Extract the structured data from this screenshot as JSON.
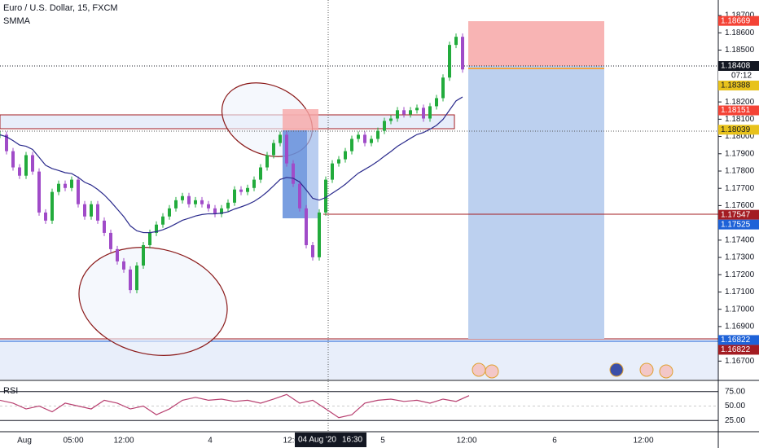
{
  "chart_data": {
    "type": "candlestick",
    "title": "Euro / U.S. Dollar, 15, FXCM",
    "indicator": "SMMA",
    "closes": [
      1.1801,
      1.17915,
      1.17821,
      1.17773,
      1.17892,
      1.17797,
      1.1756,
      1.17513,
      1.17679,
      1.17726,
      1.17702,
      1.1775,
      1.17608,
      1.17537,
      1.17608,
      1.17513,
      1.17442,
      1.17348,
      1.17277,
      1.1723,
      1.17111,
      1.17253,
      1.17371,
      1.17442,
      1.1749,
      1.17537,
      1.17584,
      1.17631,
      1.17655,
      1.17608,
      1.17631,
      1.17608,
      1.17584,
      1.17551,
      1.17584,
      1.17617,
      1.17693,
      1.17679,
      1.17702,
      1.1775,
      1.17821,
      1.17892,
      1.17962,
      1.1801,
      1.17844,
      1.17726,
      1.17584,
      1.17371,
      1.17301,
      1.1756,
      1.1775,
      1.17844,
      1.17868,
      1.17915,
      1.17986,
      1.1801,
      1.17962,
      1.17986,
      1.18033,
      1.1809,
      1.18104,
      1.18152,
      1.18128,
      1.18152,
      1.18166,
      1.18104,
      1.18175,
      1.18222,
      1.18341,
      1.1853,
      1.18577,
      1.18388
    ],
    "up_color": "#22ab3c",
    "down_color": "#a04bc8",
    "smma_color": "#2a2a8c",
    "ylim": [
      1.16593,
      1.1879
    ],
    "yticks": [
      {
        "value": 1.187,
        "label": "1.18700"
      },
      {
        "value": 1.186,
        "label": "1.18600"
      },
      {
        "value": 1.185,
        "label": "1.18500"
      },
      {
        "value": 1.182,
        "label": "1.18200"
      },
      {
        "value": 1.181,
        "label": "1.18100"
      },
      {
        "value": 1.18,
        "label": "1.18000"
      },
      {
        "value": 1.179,
        "label": "1.17900"
      },
      {
        "value": 1.178,
        "label": "1.17800"
      },
      {
        "value": 1.177,
        "label": "1.17700"
      },
      {
        "value": 1.176,
        "label": "1.17600"
      },
      {
        "value": 1.174,
        "label": "1.17400"
      },
      {
        "value": 1.173,
        "label": "1.17300"
      },
      {
        "value": 1.172,
        "label": "1.17200"
      },
      {
        "value": 1.171,
        "label": "1.17100"
      },
      {
        "value": 1.17,
        "label": "1.17000"
      },
      {
        "value": 1.169,
        "label": "1.16900"
      },
      {
        "value": 1.167,
        "label": "1.16700"
      }
    ],
    "price_tags": [
      {
        "value": 1.18669,
        "label": "1.18669",
        "color": "#f44336",
        "text_color": "#ffffff"
      },
      {
        "value": 1.18408,
        "label": "1.18408",
        "color": "#131722",
        "text_color": "#ffffff"
      },
      {
        "value": 1.18388,
        "label": "1.18388",
        "color": "#e8c21c",
        "text_color": "#131722"
      },
      {
        "value": 1.18151,
        "label": "1.18151",
        "color": "#f44336",
        "text_color": "#ffffff"
      },
      {
        "value": 1.18039,
        "label": "1.18039",
        "color": "#e8c21c",
        "text_color": "#131722"
      },
      {
        "value": 1.17547,
        "label": "1.17547",
        "color": "#a31c22",
        "text_color": "#ffffff"
      },
      {
        "value": 1.17525,
        "label": "1.17525",
        "color": "#1e62d8",
        "text_color": "#ffffff"
      },
      {
        "value": 1.16822,
        "label": "1.16822",
        "color": "#1e62d8",
        "text_color": "#ffffff"
      },
      {
        "value": 1.16822,
        "label": "1.16822",
        "color": "#a31c22",
        "text_color": "#ffffff"
      }
    ],
    "countdown": "07:12",
    "rsi": {
      "title": "RSI",
      "color": "#b84070",
      "values": [
        60,
        55,
        45,
        50,
        40,
        55,
        50,
        45,
        60,
        55,
        45,
        50,
        35,
        45,
        60,
        65,
        60,
        62,
        58,
        60,
        55,
        62,
        70,
        55,
        60,
        45,
        30,
        35,
        55,
        60,
        62,
        58,
        60,
        55,
        62,
        58,
        68
      ],
      "ylim": [
        7.05,
        92.95
      ],
      "yticks": [
        {
          "value": 75,
          "label": "75.00"
        },
        {
          "value": 50,
          "label": "50.00"
        },
        {
          "value": 25,
          "label": "25.00"
        }
      ]
    },
    "time_labels": [
      "Aug",
      "05:00",
      "12:00",
      "4",
      "12:00",
      "5",
      "12:00",
      "6",
      "12:00"
    ],
    "crosshair_date": "04 Aug '20",
    "crosshair_time": "16:30"
  }
}
